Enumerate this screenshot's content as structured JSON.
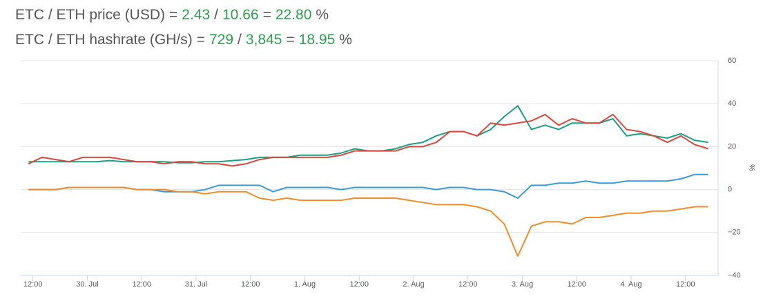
{
  "header": {
    "lines": [
      [
        "ETC / ETH price (USD)",
        "=",
        "2.43",
        "/",
        "10.66",
        "=",
        "22.80",
        "%"
      ],
      [
        "ETC / ETH hashrate (GH/s)",
        "=",
        "729",
        "/",
        "3,845",
        "=",
        "18.95",
        "%"
      ]
    ]
  },
  "chart_data": {
    "type": "line",
    "y_label": "%",
    "x": [
      11,
      14,
      17,
      20,
      23,
      26,
      29,
      32,
      35,
      38,
      41,
      44,
      47,
      50,
      53,
      56,
      59,
      62,
      65,
      68,
      71,
      74,
      77,
      80,
      83,
      86,
      89,
      92,
      95,
      98,
      101,
      104,
      107,
      110,
      113,
      116,
      119,
      122,
      125,
      128,
      131,
      134,
      137,
      140,
      143,
      146,
      149,
      152,
      155,
      158,
      161
    ],
    "xlim": [
      9.3,
      163.2
    ],
    "xticks": [
      {
        "value": 12,
        "label": "12:00"
      },
      {
        "value": 24,
        "label": "30. Jul"
      },
      {
        "value": 36,
        "label": "12:00"
      },
      {
        "value": 48,
        "label": "31. Jul"
      },
      {
        "value": 60,
        "label": "12:00"
      },
      {
        "value": 72,
        "label": "1. Aug"
      },
      {
        "value": 84,
        "label": "12:00"
      },
      {
        "value": 96,
        "label": "2. Aug"
      },
      {
        "value": 108,
        "label": "12:00"
      },
      {
        "value": 120,
        "label": "3. Aug"
      },
      {
        "value": 132,
        "label": "12:00"
      },
      {
        "value": 144,
        "label": "4. Aug"
      },
      {
        "value": 156,
        "label": "12:00"
      }
    ],
    "ylim": [
      -40,
      60
    ],
    "yticks": [
      60,
      40,
      20,
      0,
      {
        "value": -20,
        "label": "−20"
      },
      {
        "value": -40,
        "label": "−40"
      }
    ],
    "grid": true,
    "series": [
      {
        "color": "#1d9e86",
        "values": [
          13,
          13,
          13,
          13,
          13,
          13,
          13.5,
          13,
          13,
          13,
          13,
          12.5,
          12.5,
          13,
          13,
          13.5,
          14,
          15,
          15,
          15,
          16,
          16,
          16,
          17,
          19,
          18,
          18,
          19,
          21,
          22,
          25,
          27,
          27,
          25,
          28,
          34,
          39,
          28,
          30,
          28,
          31,
          31,
          31,
          33,
          25,
          26,
          25,
          24,
          26,
          23,
          22
        ]
      },
      {
        "color": "#d9473a",
        "values": [
          12,
          15,
          14,
          13,
          15,
          15,
          15,
          14,
          13,
          13,
          12,
          13,
          13,
          12,
          12,
          11,
          12,
          14,
          15,
          15,
          15,
          15,
          15,
          16,
          18,
          18,
          18,
          18,
          20,
          20,
          22,
          27,
          27,
          25,
          31,
          30,
          31,
          32,
          35,
          30,
          33,
          31,
          31,
          35,
          28,
          27,
          25,
          22,
          25,
          21,
          19
        ]
      },
      {
        "color": "#3a9ad9",
        "values": [
          0,
          0,
          0,
          1,
          1,
          1,
          1,
          1,
          0,
          0,
          -1,
          -1,
          -1,
          0,
          2,
          2,
          2,
          2,
          -1,
          1,
          1,
          1,
          1,
          0,
          1,
          1,
          1,
          1,
          1,
          1,
          0,
          1,
          1,
          0,
          0,
          -1,
          -4,
          2,
          2,
          3,
          3,
          4,
          3,
          3,
          4,
          4,
          4,
          4,
          5,
          7,
          7
        ]
      },
      {
        "color": "#f28c28",
        "values": [
          0,
          0,
          0,
          1,
          1,
          1,
          1,
          1,
          0,
          0,
          0,
          -1,
          -1,
          -2,
          -1,
          -1,
          -1,
          -4,
          -5,
          -4,
          -5,
          -5,
          -5,
          -5,
          -4,
          -4,
          -4,
          -4,
          -5,
          -6,
          -7,
          -7,
          -7,
          -8,
          -10,
          -16,
          -31,
          -17,
          -15,
          -15,
          -16,
          -13,
          -13,
          -12,
          -11,
          -11,
          -10,
          -10,
          -9,
          -8,
          -8
        ]
      }
    ]
  }
}
